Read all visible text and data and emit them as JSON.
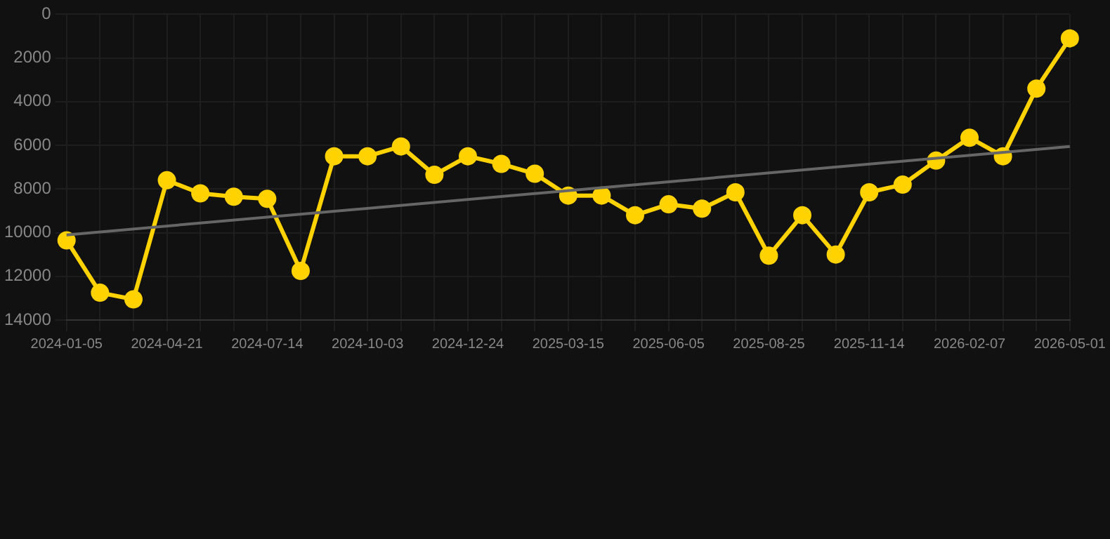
{
  "chart_data": {
    "type": "line",
    "categories": [
      "2024-01-05",
      null,
      null,
      "2024-04-21",
      null,
      null,
      "2024-07-14",
      null,
      null,
      "2024-10-03",
      null,
      null,
      "2024-12-24",
      null,
      null,
      "2025-03-15",
      null,
      null,
      "2025-06-05",
      null,
      null,
      "2025-08-25",
      null,
      null,
      "2025-11-14",
      null,
      null,
      "2026-02-07",
      null,
      null,
      "2026-05-01"
    ],
    "series": [
      {
        "color": "#ffd200",
        "marker": "circle",
        "values": [
          10350,
          12750,
          13050,
          7600,
          8200,
          8350,
          8450,
          11750,
          6500,
          6500,
          6050,
          7350,
          6500,
          6850,
          7300,
          8300,
          8300,
          9200,
          8700,
          8900,
          8150,
          11050,
          9200,
          11000,
          8150,
          7800,
          6700,
          5650,
          6500,
          3400,
          1100
        ]
      },
      {
        "type": "line",
        "color": "#666666",
        "marker": "none",
        "values": [
          10100,
          null,
          null,
          null,
          null,
          null,
          null,
          null,
          null,
          null,
          null,
          null,
          null,
          null,
          null,
          null,
          null,
          null,
          null,
          null,
          null,
          null,
          null,
          null,
          null,
          null,
          null,
          null,
          null,
          null,
          6050
        ]
      }
    ],
    "ylim": [
      14000,
      0
    ],
    "yticks": [
      0,
      2000,
      4000,
      6000,
      8000,
      10000,
      12000,
      14000
    ],
    "grid": true
  }
}
